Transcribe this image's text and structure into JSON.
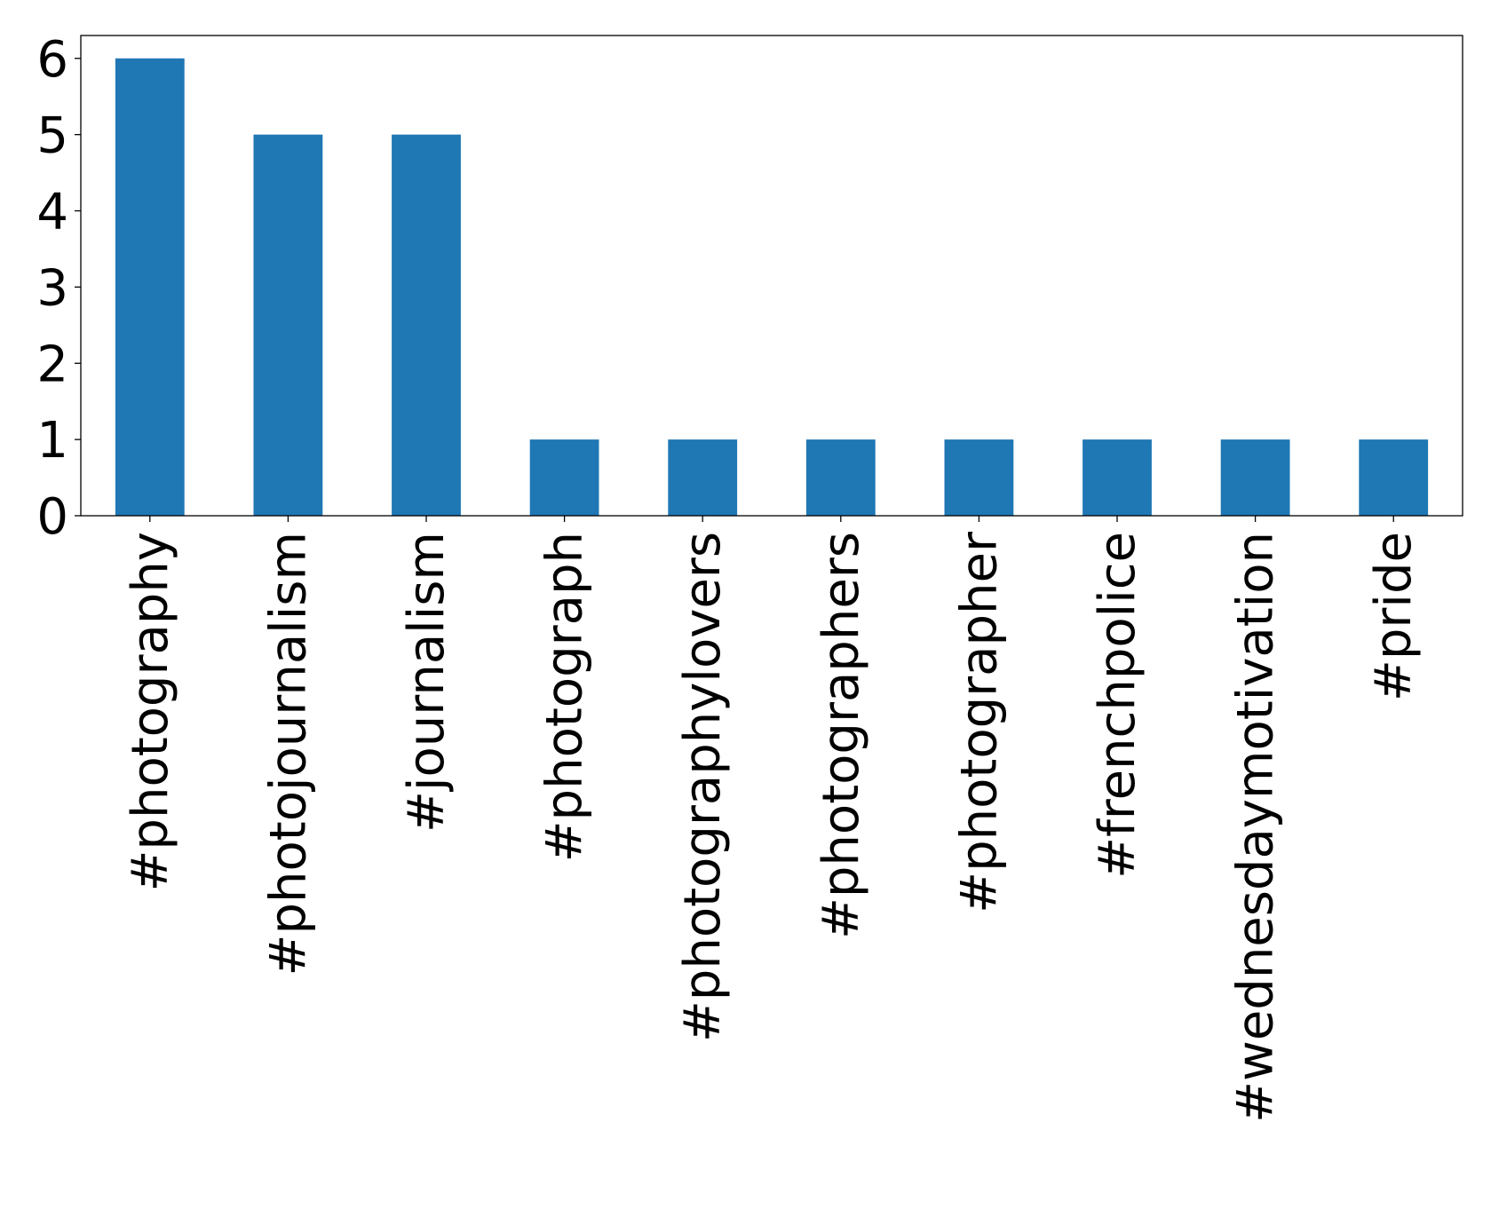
{
  "chart_data": {
    "type": "bar",
    "title": "",
    "xlabel": "",
    "ylabel": "",
    "categories": [
      "#photography",
      "#photojournalism",
      "#journalism",
      "#photograph",
      "#photographylovers",
      "#photographers",
      "#photographer",
      "#frenchpolice",
      "#wednesdaymotivation",
      "#pride"
    ],
    "values": [
      6,
      5,
      5,
      1,
      1,
      1,
      1,
      1,
      1,
      1
    ],
    "ylim": [
      0,
      6.3
    ],
    "yticks": [
      0,
      1,
      2,
      3,
      4,
      5,
      6
    ],
    "bar_color": "#1f77b4",
    "grid": false,
    "legend": "none"
  }
}
